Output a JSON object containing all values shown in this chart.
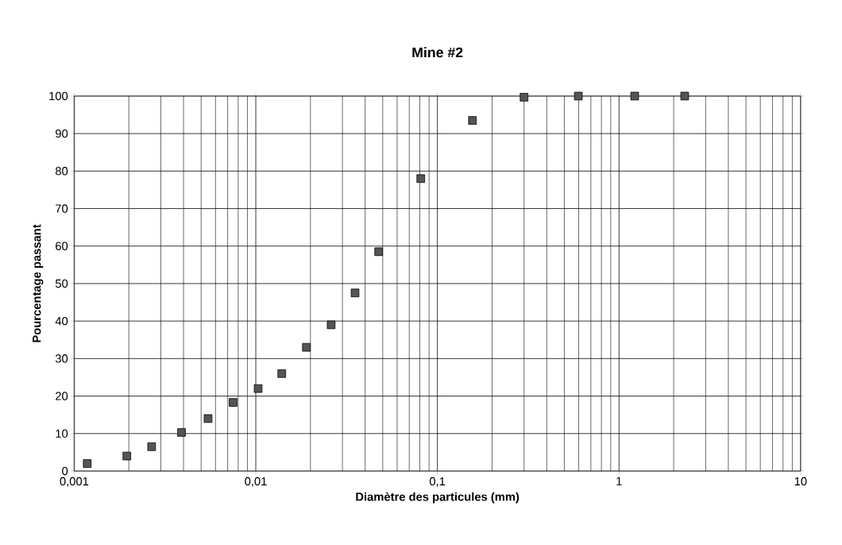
{
  "chart_data": {
    "type": "scatter",
    "title": "Mine #2",
    "xlabel": "Diamètre des particules (mm)",
    "ylabel": "Pourcentage passant",
    "x": [
      0.00118,
      0.00195,
      0.00267,
      0.0039,
      0.00546,
      0.0075,
      0.0103,
      0.0139,
      0.019,
      0.026,
      0.0352,
      0.0475,
      0.081,
      0.156,
      0.3,
      0.597,
      1.22,
      2.3
    ],
    "series": [
      {
        "color": "#555555",
        "values": [
          2,
          4,
          6.5,
          10.3,
          14,
          18.3,
          22,
          26,
          33,
          39,
          47.5,
          58.5,
          78,
          93.5,
          99.7,
          100,
          100,
          100
        ]
      }
    ],
    "log": "x",
    "xlim": [
      0.001,
      10
    ],
    "ylim": [
      0,
      100
    ],
    "xticks": [
      {
        "value": 0.001,
        "label": "0,001"
      },
      {
        "value": 0.01,
        "label": "0,01"
      },
      {
        "value": 0.1,
        "label": "0,1"
      },
      {
        "value": 1,
        "label": "1"
      },
      {
        "value": 10,
        "label": "10"
      }
    ],
    "yticks": [
      0,
      10,
      20,
      30,
      40,
      50,
      60,
      70,
      80,
      90,
      100
    ],
    "grid": true,
    "marker": "square"
  }
}
